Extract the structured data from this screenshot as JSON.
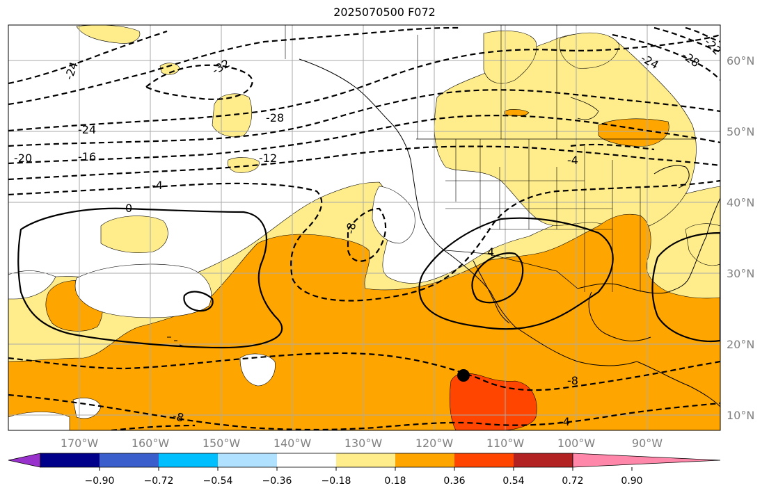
{
  "title": "2025070500 F072",
  "lat_labels": [
    "60°N",
    "50°N",
    "40°N",
    "30°N",
    "20°N",
    "10°N"
  ],
  "lon_labels": [
    "170°W",
    "160°W",
    "150°W",
    "140°W",
    "130°W",
    "120°W",
    "110°W",
    "100°W",
    "90°W"
  ],
  "colorbar": {
    "ticks": [
      "−0.90",
      "−0.72",
      "−0.54",
      "−0.36",
      "−0.18",
      "0.18",
      "0.36",
      "0.54",
      "0.72",
      "0.90"
    ],
    "colors": [
      "#9932cc",
      "#00008b",
      "#3a5fcd",
      "#00bfff",
      "#b0e2ff",
      "#ffffff",
      "#ffec8b",
      "#ffa500",
      "#ff4500",
      "#b22222",
      "#ff88aa"
    ]
  },
  "fill_colors": {
    "low": "#ffec8b",
    "mid": "#ffa500",
    "high": "#ff4500"
  },
  "contour_labels": [
    "-24",
    "-32",
    "-28",
    "-24",
    "-28",
    "-22",
    "-24",
    "-20",
    "-16",
    "-12",
    "-4",
    "0",
    "-8",
    "-4",
    "-8",
    "4",
    "-8",
    "-4",
    "-8",
    "-12",
    "0"
  ],
  "marker": {
    "name": "black dot",
    "lon": -116,
    "lat": 15.5
  }
}
